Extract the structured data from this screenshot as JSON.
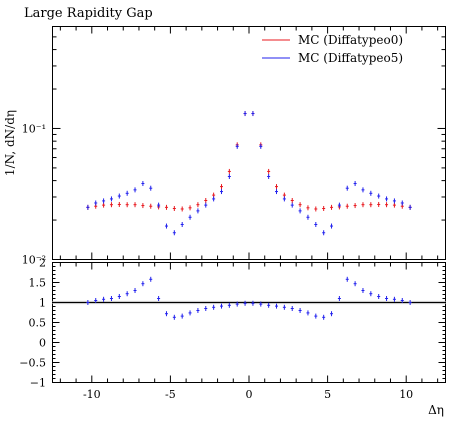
{
  "chart_data": [
    {
      "type": "scatter",
      "title": "Large Rapidity Gap",
      "ylabel": "1/N, dN/dη",
      "y_scale": "log",
      "xlim": [
        -12.5,
        12.5
      ],
      "ylim": [
        0.01,
        0.6
      ],
      "y_tick_labels": [
        "10⁻²",
        "10⁻¹"
      ],
      "legend_position": "top-right",
      "series": [
        {
          "name": "MC (Diffatypeo0)",
          "color": "#e8191f",
          "x": [
            -10.25,
            -9.75,
            -9.25,
            -8.75,
            -8.25,
            -7.75,
            -7.25,
            -6.75,
            -6.25,
            -5.75,
            -5.25,
            -4.75,
            -4.25,
            -3.75,
            -3.25,
            -2.75,
            -2.25,
            -1.75,
            -1.25,
            -0.75,
            -0.25,
            0.25,
            0.75,
            1.25,
            1.75,
            2.25,
            2.75,
            3.25,
            3.75,
            4.25,
            4.75,
            5.25,
            5.75,
            6.25,
            6.75,
            7.25,
            7.75,
            8.25,
            8.75,
            9.25,
            9.75,
            10.25
          ],
          "y": [
            0.025,
            0.0255,
            0.026,
            0.0262,
            0.0263,
            0.0262,
            0.0262,
            0.0258,
            0.0255,
            0.0252,
            0.025,
            0.0245,
            0.0243,
            0.0248,
            0.0262,
            0.0282,
            0.031,
            0.036,
            0.047,
            0.075,
            0.13,
            0.13,
            0.075,
            0.047,
            0.036,
            0.031,
            0.0282,
            0.0262,
            0.0248,
            0.0243,
            0.0245,
            0.025,
            0.0252,
            0.0255,
            0.0258,
            0.0262,
            0.0262,
            0.0263,
            0.0262,
            0.026,
            0.0255,
            0.025
          ]
        },
        {
          "name": "MC (Diffatypeo5)",
          "color": "#2222ee",
          "x": [
            -10.25,
            -9.75,
            -9.25,
            -8.75,
            -8.25,
            -7.75,
            -7.25,
            -6.75,
            -6.25,
            -5.75,
            -5.25,
            -4.75,
            -4.25,
            -3.75,
            -3.25,
            -2.75,
            -2.25,
            -1.75,
            -1.25,
            -0.75,
            -0.25,
            0.25,
            0.75,
            1.25,
            1.75,
            2.25,
            2.75,
            3.25,
            3.75,
            4.25,
            4.75,
            5.25,
            5.75,
            6.25,
            6.75,
            7.25,
            7.75,
            8.25,
            8.75,
            9.25,
            9.75,
            10.25
          ],
          "y": [
            0.025,
            0.027,
            0.028,
            0.029,
            0.0305,
            0.032,
            0.034,
            0.038,
            0.035,
            0.026,
            0.018,
            0.016,
            0.0185,
            0.021,
            0.0235,
            0.026,
            0.029,
            0.033,
            0.043,
            0.073,
            0.13,
            0.13,
            0.073,
            0.043,
            0.033,
            0.029,
            0.026,
            0.0235,
            0.021,
            0.0185,
            0.016,
            0.018,
            0.026,
            0.035,
            0.038,
            0.034,
            0.032,
            0.0305,
            0.029,
            0.028,
            0.027,
            0.025
          ]
        }
      ]
    },
    {
      "type": "scatter",
      "xlabel": "Δη",
      "xlim": [
        -12.5,
        12.5
      ],
      "ylim": [
        -1,
        2
      ],
      "x_ticks": [
        -10,
        -5,
        0,
        5,
        10
      ],
      "y_ticks": [
        -1,
        -0.5,
        0,
        0.5,
        1,
        1.5,
        2
      ],
      "reference_line": 1,
      "series": [
        {
          "color": "#2222ee",
          "x": [
            -10.25,
            -9.75,
            -9.25,
            -8.75,
            -8.25,
            -7.75,
            -7.25,
            -6.75,
            -6.25,
            -5.75,
            -5.25,
            -4.75,
            -4.25,
            -3.75,
            -3.25,
            -2.75,
            -2.25,
            -1.75,
            -1.25,
            -0.75,
            -0.25,
            0.25,
            0.75,
            1.25,
            1.75,
            2.25,
            2.75,
            3.25,
            3.75,
            4.25,
            4.75,
            5.25,
            5.75,
            6.25,
            6.75,
            7.25,
            7.75,
            8.25,
            8.75,
            9.25,
            9.75,
            10.25
          ],
          "y": [
            1.0,
            1.05,
            1.08,
            1.1,
            1.15,
            1.22,
            1.3,
            1.47,
            1.58,
            1.1,
            0.72,
            0.63,
            0.66,
            0.74,
            0.8,
            0.85,
            0.88,
            0.91,
            0.93,
            0.96,
            0.98,
            0.98,
            0.96,
            0.93,
            0.91,
            0.88,
            0.85,
            0.8,
            0.74,
            0.66,
            0.63,
            0.72,
            1.1,
            1.58,
            1.47,
            1.3,
            1.22,
            1.15,
            1.1,
            1.08,
            1.05,
            1.0
          ]
        }
      ]
    }
  ]
}
